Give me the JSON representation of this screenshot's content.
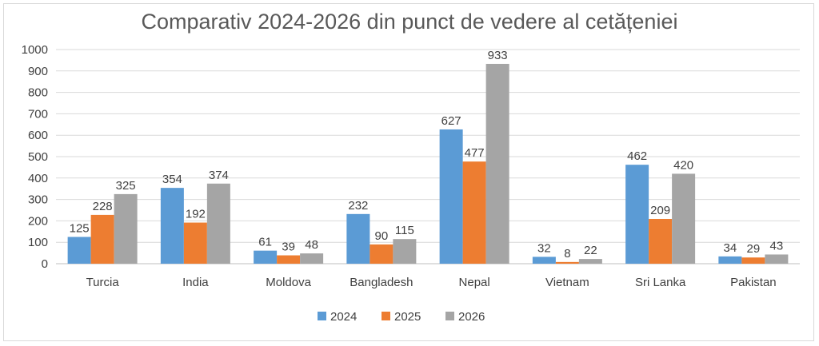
{
  "chart_data": {
    "type": "bar",
    "title": "Comparativ 2024-2026 din punct de vedere al cetățeniei",
    "xlabel": "",
    "ylabel": "",
    "ylim": [
      0,
      1000
    ],
    "yticks": [
      0,
      100,
      200,
      300,
      400,
      500,
      600,
      700,
      800,
      900,
      1000
    ],
    "grid": true,
    "legend_position": "bottom",
    "categories": [
      "Turcia",
      "India",
      "Moldova",
      "Bangladesh",
      "Nepal",
      "Vietnam",
      "Sri Lanka",
      "Pakistan"
    ],
    "series": [
      {
        "name": "2024",
        "color": "#5b9bd5",
        "values": [
          125,
          354,
          61,
          232,
          627,
          32,
          462,
          34
        ]
      },
      {
        "name": "2025",
        "color": "#ed7d31",
        "values": [
          228,
          192,
          39,
          90,
          477,
          8,
          209,
          29
        ]
      },
      {
        "name": "2026",
        "color": "#a5a5a5",
        "values": [
          325,
          374,
          48,
          115,
          933,
          22,
          420,
          43
        ]
      }
    ]
  }
}
